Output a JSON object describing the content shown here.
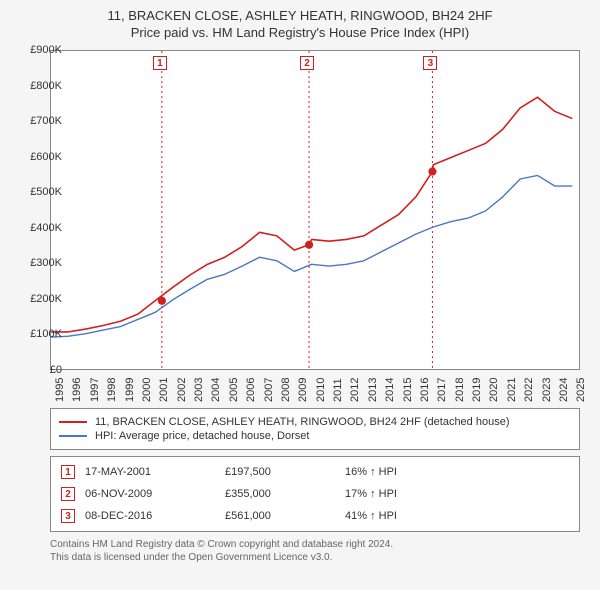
{
  "title_main": "11, BRACKEN CLOSE, ASHLEY HEATH, RINGWOOD, BH24 2HF",
  "title_sub": "Price paid vs. HM Land Registry's House Price Index (HPI)",
  "chart": {
    "type": "line",
    "background_color": "#ffffff",
    "panel_border": "#888888",
    "page_bg": "#f5f5f5",
    "xlim": [
      1995,
      2025.5
    ],
    "ylim": [
      0,
      900
    ],
    "ytick_step": 100,
    "ytick_prefix": "£",
    "ytick_suffix": "K",
    "xticks": [
      1995,
      1996,
      1997,
      1998,
      1999,
      2000,
      2001,
      2002,
      2003,
      2004,
      2005,
      2006,
      2007,
      2008,
      2009,
      2010,
      2011,
      2012,
      2013,
      2014,
      2015,
      2016,
      2017,
      2018,
      2019,
      2020,
      2021,
      2022,
      2023,
      2024,
      2025
    ],
    "series": [
      {
        "name": "property",
        "label": "11, BRACKEN CLOSE, ASHLEY HEATH, RINGWOOD, BH24 2HF (detached house)",
        "color": "#d02020",
        "line_width": 1.6,
        "points": [
          [
            1995,
            110
          ],
          [
            1996,
            110
          ],
          [
            1997,
            118
          ],
          [
            1998,
            128
          ],
          [
            1999,
            140
          ],
          [
            2000,
            160
          ],
          [
            2001,
            198
          ],
          [
            2002,
            235
          ],
          [
            2003,
            270
          ],
          [
            2004,
            300
          ],
          [
            2005,
            320
          ],
          [
            2006,
            350
          ],
          [
            2007,
            390
          ],
          [
            2008,
            380
          ],
          [
            2009,
            340
          ],
          [
            2009.85,
            355
          ],
          [
            2010,
            370
          ],
          [
            2011,
            365
          ],
          [
            2012,
            370
          ],
          [
            2013,
            380
          ],
          [
            2014,
            410
          ],
          [
            2015,
            440
          ],
          [
            2016,
            490
          ],
          [
            2016.95,
            561
          ],
          [
            2017,
            580
          ],
          [
            2018,
            600
          ],
          [
            2019,
            620
          ],
          [
            2020,
            640
          ],
          [
            2021,
            680
          ],
          [
            2022,
            740
          ],
          [
            2023,
            770
          ],
          [
            2024,
            730
          ],
          [
            2025,
            710
          ]
        ]
      },
      {
        "name": "hpi",
        "label": "HPI: Average price, detached house, Dorset",
        "color": "#4a78c0",
        "line_width": 1.4,
        "points": [
          [
            1995,
            95
          ],
          [
            1996,
            98
          ],
          [
            1997,
            105
          ],
          [
            1998,
            115
          ],
          [
            1999,
            125
          ],
          [
            2000,
            145
          ],
          [
            2001,
            165
          ],
          [
            2002,
            200
          ],
          [
            2003,
            230
          ],
          [
            2004,
            258
          ],
          [
            2005,
            272
          ],
          [
            2006,
            295
          ],
          [
            2007,
            320
          ],
          [
            2008,
            310
          ],
          [
            2009,
            280
          ],
          [
            2010,
            300
          ],
          [
            2011,
            295
          ],
          [
            2012,
            300
          ],
          [
            2013,
            310
          ],
          [
            2014,
            335
          ],
          [
            2015,
            360
          ],
          [
            2016,
            385
          ],
          [
            2017,
            405
          ],
          [
            2018,
            420
          ],
          [
            2019,
            430
          ],
          [
            2020,
            450
          ],
          [
            2021,
            490
          ],
          [
            2022,
            540
          ],
          [
            2023,
            550
          ],
          [
            2024,
            520
          ],
          [
            2025,
            520
          ]
        ]
      }
    ],
    "sale_markers": [
      {
        "n": "1",
        "x": 2001.38,
        "y": 197.5
      },
      {
        "n": "2",
        "x": 2009.85,
        "y": 355
      },
      {
        "n": "3",
        "x": 2016.95,
        "y": 561
      }
    ],
    "vline_color": "#d02020",
    "vline_dash": "2,3",
    "sale_dot_radius": 4
  },
  "legend": {
    "items": [
      {
        "color": "#d02020",
        "text": "11, BRACKEN CLOSE, ASHLEY HEATH, RINGWOOD, BH24 2HF (detached house)"
      },
      {
        "color": "#4a78c0",
        "text": "HPI: Average price, detached house, Dorset"
      }
    ]
  },
  "sales_table": {
    "rows": [
      {
        "n": "1",
        "date": "17-MAY-2001",
        "price": "£197,500",
        "pct": "16% ↑ HPI"
      },
      {
        "n": "2",
        "date": "06-NOV-2009",
        "price": "£355,000",
        "pct": "17% ↑ HPI"
      },
      {
        "n": "3",
        "date": "08-DEC-2016",
        "price": "£561,000",
        "pct": "41% ↑ HPI"
      }
    ]
  },
  "footer": {
    "line1": "Contains HM Land Registry data © Crown copyright and database right 2024.",
    "line2": "This data is licensed under the Open Government Licence v3.0."
  }
}
